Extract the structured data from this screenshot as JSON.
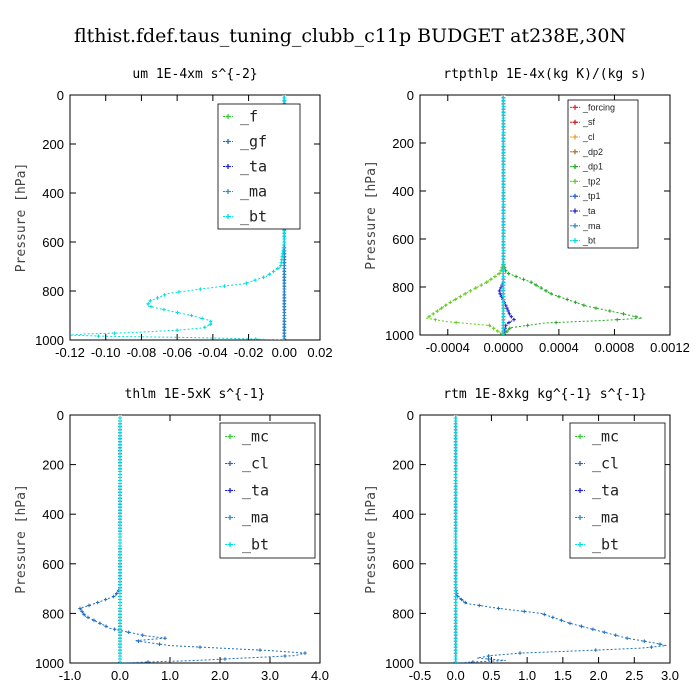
{
  "figure_title": "flthist.fdef.taus_tuning_clubb_c11p  BUDGET at238E,30N",
  "colors": {
    "f": "#33cc33",
    "gf": "#1f6fbf",
    "ta": "#2222cc",
    "ma": "#2a8fd0",
    "bt": "#00dede",
    "forcing": "#ee2222",
    "sf": "#cc2222",
    "cl": "#f0a020",
    "dp2": "#aa7733",
    "dp1": "#22aa22",
    "tp2": "#66cc22",
    "tp1": "#2266cc",
    "mc": "#33cc33",
    "cl_blue": "#1f6fbf"
  },
  "chart_data": [
    {
      "type": "line",
      "title": "um  1E-4xm s^{-2}",
      "ylabel": "Pressure [hPa]",
      "xlim": [
        -0.12,
        0.02
      ],
      "ylim": [
        1000,
        0
      ],
      "xticks": [
        "-0.12",
        "-0.10",
        "-0.08",
        "-0.06",
        "-0.04",
        "-0.02",
        "0.00",
        "0.02"
      ],
      "xtick_values": [
        -0.12,
        -0.1,
        -0.08,
        -0.06,
        -0.04,
        -0.02,
        0.0,
        0.02
      ],
      "yticks": [
        "0",
        "200",
        "400",
        "600",
        "800",
        "1000"
      ],
      "ytick_values": [
        0,
        200,
        400,
        600,
        800,
        1000
      ],
      "legend_position": "top-right",
      "series": [
        {
          "name": "_f",
          "color_key": "f",
          "values": [
            [
              0,
              0
            ],
            [
              0,
              1000
            ]
          ]
        },
        {
          "name": "_gf",
          "color_key": "gf",
          "values": [
            [
              0,
              0
            ],
            [
              0,
              150
            ],
            [
              -0.003,
              200
            ],
            [
              -0.004,
              230
            ],
            [
              -0.002,
              260
            ],
            [
              0,
              300
            ],
            [
              0,
              1000
            ]
          ]
        },
        {
          "name": "_ta",
          "color_key": "ta",
          "values": [
            [
              0,
              0
            ],
            [
              0,
              1000
            ]
          ]
        },
        {
          "name": "_ma",
          "color_key": "ma",
          "values": [
            [
              0,
              0
            ],
            [
              0,
              1000
            ]
          ]
        },
        {
          "name": "_bt",
          "color_key": "bt",
          "values": [
            [
              0,
              0
            ],
            [
              0.001,
              100
            ],
            [
              0.002,
              200
            ],
            [
              0.002,
              300
            ],
            [
              0.001,
              400
            ],
            [
              0,
              500
            ],
            [
              0,
              600
            ],
            [
              -0.002,
              700
            ],
            [
              -0.01,
              740
            ],
            [
              -0.022,
              770
            ],
            [
              -0.045,
              790
            ],
            [
              -0.065,
              810
            ],
            [
              -0.075,
              840
            ],
            [
              -0.077,
              860
            ],
            [
              -0.065,
              880
            ],
            [
              -0.052,
              900
            ],
            [
              -0.042,
              920
            ],
            [
              -0.04,
              930
            ],
            [
              -0.045,
              950
            ],
            [
              -0.06,
              960
            ],
            [
              -0.085,
              970
            ],
            [
              -0.11,
              975
            ],
            [
              -0.12,
              980
            ],
            [
              -0.1,
              985
            ],
            [
              -0.05,
              990
            ],
            [
              -0.02,
              995
            ],
            [
              0,
              1000
            ]
          ]
        }
      ]
    },
    {
      "type": "line",
      "title": "rtpthlp  1E-4x(kg K)/(kg s)",
      "ylabel": "Pressure [hPa]",
      "xlim": [
        -0.0006,
        0.0012
      ],
      "ylim": [
        1000,
        0
      ],
      "xticks": [
        "-0.0004",
        "0.0000",
        "0.0004",
        "0.0008",
        "0.0012"
      ],
      "xtick_values": [
        -0.0004,
        0.0,
        0.0004,
        0.0008,
        0.0012
      ],
      "yticks": [
        "0",
        "200",
        "400",
        "600",
        "800",
        "1000"
      ],
      "ytick_values": [
        0,
        200,
        400,
        600,
        800,
        1000
      ],
      "legend_position": "top-right",
      "series": [
        {
          "name": "_forcing",
          "color_key": "forcing",
          "values": [
            [
              0,
              0
            ],
            [
              0,
              1000
            ]
          ]
        },
        {
          "name": "_sf",
          "color_key": "sf",
          "values": [
            [
              0,
              0
            ],
            [
              0,
              1000
            ]
          ]
        },
        {
          "name": "_cl",
          "color_key": "cl",
          "values": [
            [
              0,
              0
            ],
            [
              0,
              1000
            ]
          ]
        },
        {
          "name": "_dp2",
          "color_key": "dp2",
          "values": [
            [
              0,
              0
            ],
            [
              0,
              1000
            ]
          ]
        },
        {
          "name": "_dp1",
          "color_key": "dp1",
          "values": [
            [
              0,
              0
            ],
            [
              0,
              700
            ],
            [
              2e-05,
              740
            ],
            [
              0.0002,
              780
            ],
            [
              0.00035,
              830
            ],
            [
              0.0006,
              880
            ],
            [
              0.00085,
              910
            ],
            [
              0.001,
              930
            ],
            [
              0.0007,
              940
            ],
            [
              0.0003,
              950
            ],
            [
              5e-05,
              970
            ],
            [
              0,
              1000
            ]
          ]
        },
        {
          "name": "_tp2",
          "color_key": "tp2",
          "values": [
            [
              0,
              0
            ],
            [
              0,
              700
            ],
            [
              -2e-05,
              740
            ],
            [
              -0.00012,
              780
            ],
            [
              -0.00025,
              820
            ],
            [
              -0.0004,
              870
            ],
            [
              -0.0005,
              910
            ],
            [
              -0.00055,
              930
            ],
            [
              -0.0004,
              945
            ],
            [
              -0.0001,
              960
            ],
            [
              0,
              1000
            ]
          ]
        },
        {
          "name": "_tp1",
          "color_key": "tp1",
          "values": [
            [
              0,
              0
            ],
            [
              0,
              1000
            ]
          ]
        },
        {
          "name": "_ta",
          "color_key": "ta",
          "values": [
            [
              0,
              0
            ],
            [
              0,
              780
            ],
            [
              -3e-05,
              820
            ],
            [
              2e-05,
              880
            ],
            [
              5e-05,
              920
            ],
            [
              8e-05,
              935
            ],
            [
              2e-05,
              955
            ],
            [
              0,
              1000
            ]
          ]
        },
        {
          "name": "_ma",
          "color_key": "ma",
          "values": [
            [
              0,
              0
            ],
            [
              0,
              1000
            ]
          ]
        },
        {
          "name": "_bt",
          "color_key": "bt",
          "values": [
            [
              0,
              0
            ],
            [
              0,
              1000
            ]
          ]
        }
      ]
    },
    {
      "type": "line",
      "title": "thlm  1E-5xK s^{-1}",
      "ylabel": "Pressure [hPa]",
      "xlim": [
        -1.0,
        4.0
      ],
      "ylim": [
        1000,
        0
      ],
      "xticks": [
        "-1.0",
        "0.0",
        "1.0",
        "2.0",
        "3.0",
        "4.0"
      ],
      "xtick_values": [
        -1.0,
        0.0,
        1.0,
        2.0,
        3.0,
        4.0
      ],
      "yticks": [
        "0",
        "200",
        "400",
        "600",
        "800",
        "1000"
      ],
      "ytick_values": [
        0,
        200,
        400,
        600,
        800,
        1000
      ],
      "legend_position": "top-right",
      "series": [
        {
          "name": "_mc",
          "color_key": "mc",
          "values": [
            [
              0,
              0
            ],
            [
              0,
              1000
            ]
          ]
        },
        {
          "name": "_cl",
          "color_key": "cl_blue",
          "values": [
            [
              0,
              0
            ],
            [
              0,
              700
            ],
            [
              -0.1,
              730
            ],
            [
              -0.5,
              760
            ],
            [
              -0.8,
              780
            ],
            [
              -0.7,
              810
            ],
            [
              -0.5,
              830
            ],
            [
              -0.2,
              860
            ],
            [
              0.5,
              890
            ],
            [
              0.9,
              900
            ],
            [
              0.3,
              910
            ],
            [
              1.0,
              930
            ],
            [
              2.0,
              940
            ],
            [
              3.0,
              950
            ],
            [
              3.7,
              960
            ],
            [
              3.5,
              970
            ],
            [
              2.5,
              980
            ],
            [
              1.5,
              990
            ],
            [
              0.7,
              995
            ],
            [
              0,
              1000
            ]
          ]
        },
        {
          "name": "_ta",
          "color_key": "ta",
          "values": [
            [
              0,
              0
            ],
            [
              0,
              1000
            ]
          ]
        },
        {
          "name": "_ma",
          "color_key": "ma",
          "values": [
            [
              0,
              0
            ],
            [
              0,
              1000
            ]
          ]
        },
        {
          "name": "_bt",
          "color_key": "bt",
          "values": [
            [
              0,
              0
            ],
            [
              0,
              1000
            ]
          ]
        }
      ]
    },
    {
      "type": "line",
      "title": "rtm  1E-8xkg kg^{-1} s^{-1}",
      "ylabel": "Pressure [hPa]",
      "xlim": [
        -0.5,
        3.0
      ],
      "ylim": [
        1000,
        0
      ],
      "xticks": [
        "-0.5",
        "0.0",
        "0.5",
        "1.0",
        "1.5",
        "2.0",
        "2.5",
        "3.0"
      ],
      "xtick_values": [
        -0.5,
        0.0,
        0.5,
        1.0,
        1.5,
        2.0,
        2.5,
        3.0
      ],
      "yticks": [
        "0",
        "200",
        "400",
        "600",
        "800",
        "1000"
      ],
      "ytick_values": [
        0,
        200,
        400,
        600,
        800,
        1000
      ],
      "legend_position": "top-right",
      "series": [
        {
          "name": "_mc",
          "color_key": "mc",
          "values": [
            [
              0,
              0
            ],
            [
              0,
              1000
            ]
          ]
        },
        {
          "name": "_cl",
          "color_key": "cl_blue",
          "values": [
            [
              0,
              0
            ],
            [
              0,
              700
            ],
            [
              0.02,
              730
            ],
            [
              0.15,
              760
            ],
            [
              0.6,
              780
            ],
            [
              1.2,
              800
            ],
            [
              1.6,
              840
            ],
            [
              2.0,
              870
            ],
            [
              2.4,
              900
            ],
            [
              2.8,
              920
            ],
            [
              2.95,
              930
            ],
            [
              2.6,
              940
            ],
            [
              1.8,
              950
            ],
            [
              0.9,
              960
            ],
            [
              0.5,
              970
            ],
            [
              0.3,
              980
            ],
            [
              0.7,
              990
            ],
            [
              0.3,
              995
            ],
            [
              0,
              1000
            ]
          ]
        },
        {
          "name": "_ta",
          "color_key": "ta",
          "values": [
            [
              0,
              0
            ],
            [
              0,
              1000
            ]
          ]
        },
        {
          "name": "_ma",
          "color_key": "ma",
          "values": [
            [
              0,
              0
            ],
            [
              0,
              1000
            ]
          ]
        },
        {
          "name": "_bt",
          "color_key": "bt",
          "values": [
            [
              0,
              0
            ],
            [
              0,
              1000
            ]
          ]
        }
      ]
    }
  ]
}
